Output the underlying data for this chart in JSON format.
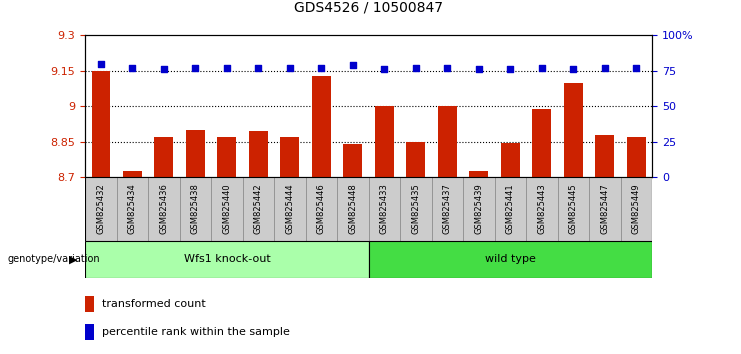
{
  "title": "GDS4526 / 10500847",
  "samples": [
    "GSM825432",
    "GSM825434",
    "GSM825436",
    "GSM825438",
    "GSM825440",
    "GSM825442",
    "GSM825444",
    "GSM825446",
    "GSM825448",
    "GSM825433",
    "GSM825435",
    "GSM825437",
    "GSM825439",
    "GSM825441",
    "GSM825443",
    "GSM825445",
    "GSM825447",
    "GSM825449"
  ],
  "transformed_counts": [
    9.148,
    8.725,
    8.868,
    8.898,
    8.868,
    8.895,
    8.87,
    9.13,
    8.84,
    8.999,
    8.848,
    9.0,
    8.724,
    8.843,
    8.99,
    9.098,
    8.88,
    8.868
  ],
  "percentile_ranks": [
    80,
    77,
    76,
    77,
    77,
    77,
    77,
    77,
    79,
    76,
    77,
    77,
    76,
    76,
    77,
    76,
    77,
    77
  ],
  "n_knockout": 9,
  "n_wildtype": 9,
  "bar_color": "#CC2200",
  "dot_color": "#0000CC",
  "ylim_left": [
    8.7,
    9.3
  ],
  "ylim_right": [
    0,
    100
  ],
  "yticks_left": [
    8.7,
    8.85,
    9.0,
    9.15,
    9.3
  ],
  "ytick_labels_left": [
    "8.7",
    "8.85",
    "9",
    "9.15",
    "9.3"
  ],
  "ytick_labels_right": [
    "0",
    "25",
    "50",
    "75",
    "100%"
  ],
  "yticks_right": [
    0,
    25,
    50,
    75,
    100
  ],
  "hlines": [
    8.85,
    9.0,
    9.15
  ],
  "group_label1": "Wfs1 knock-out",
  "group_label2": "wild type",
  "group_color1": "#AAFFAA",
  "group_color2": "#44DD44",
  "tick_bg_color": "#CCCCCC",
  "tick_border_color": "#888888",
  "legend_bar_label": "transformed count",
  "legend_dot_label": "percentile rank within the sample",
  "genotype_label": "genotype/variation",
  "title_fontsize": 10,
  "axis_fontsize": 8,
  "sample_fontsize": 6,
  "legend_fontsize": 8
}
